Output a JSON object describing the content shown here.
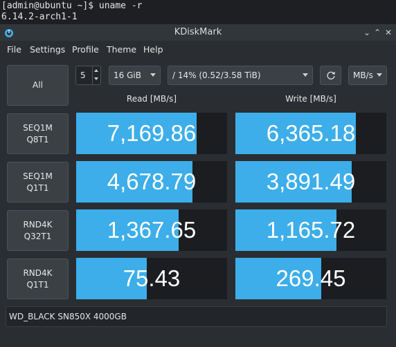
{
  "terminal": {
    "prompt": "[admin@ubuntu ~]$ uname -r",
    "output": "6.14.2-arch1-1"
  },
  "window": {
    "title": "KDiskMark",
    "controls": {
      "minimize": "⌄",
      "maximize": "⌃",
      "close": "✕"
    }
  },
  "menu": [
    "File",
    "Settings",
    "Profile",
    "Theme",
    "Help"
  ],
  "toolbar": {
    "all_label": "All",
    "runs": "5",
    "size": "16 GiB",
    "target": "/ 14% (0.52/3.58 TiB)",
    "unit": "MB/s"
  },
  "headers": {
    "read": "Read [MB/s]",
    "write": "Write [MB/s]"
  },
  "tests": [
    {
      "line1": "SEQ1M",
      "line2": "Q8T1",
      "read": "7,169.86",
      "write": "6,365.18",
      "read_fill": 0.8,
      "write_fill": 0.8
    },
    {
      "line1": "SEQ1M",
      "line2": "Q1T1",
      "read": "4,678.79",
      "write": "3,891.49",
      "read_fill": 0.77,
      "write_fill": 0.77
    },
    {
      "line1": "RND4K",
      "line2": "Q32T1",
      "read": "1,367.65",
      "write": "1,165.72",
      "read_fill": 0.68,
      "write_fill": 0.67
    },
    {
      "line1": "RND4K",
      "line2": "Q1T1",
      "read": "75.43",
      "write": "269.45",
      "read_fill": 0.47,
      "write_fill": 0.57
    }
  ],
  "device": "WD_BLACK SN850X 4000GB",
  "colors": {
    "accent": "#3daee9",
    "cell_bg": "#1b1d20",
    "window_bg": "#2a2e32"
  }
}
